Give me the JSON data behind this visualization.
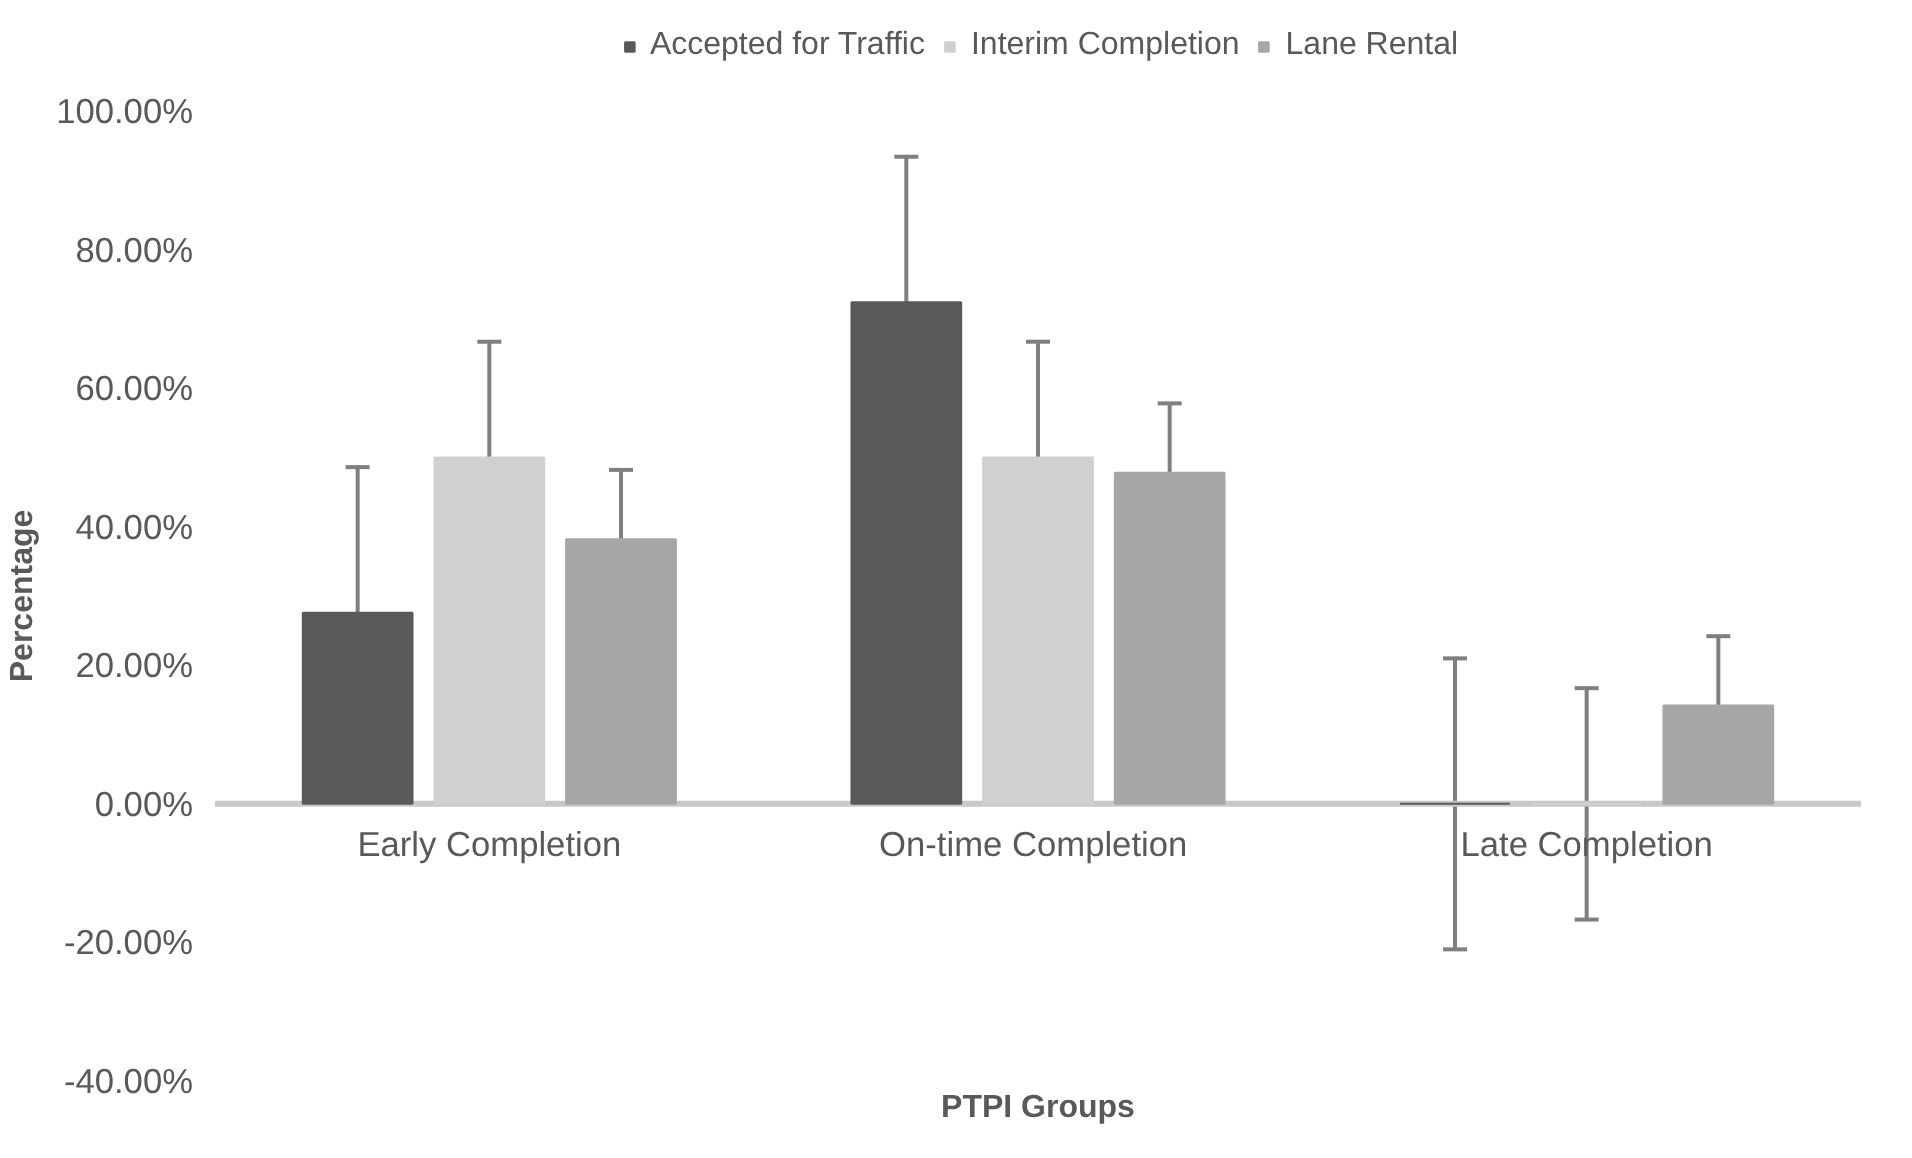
{
  "chart_data": {
    "type": "bar",
    "xlabel": "PTPI Groups",
    "ylabel": "Percentage",
    "categories": [
      "Early Completion",
      "On-time  Completion",
      "Late Completion"
    ],
    "series": [
      {
        "name": "Accepted for Traffic",
        "color": "#595959",
        "values": [
          27.6,
          72.4,
          0
        ],
        "errors": [
          21,
          21,
          21
        ]
      },
      {
        "name": "Interim Completion",
        "color": "#d0d0d0",
        "values": [
          50,
          50,
          0
        ],
        "errors": [
          16.7,
          16.7,
          16.7
        ]
      },
      {
        "name": "Lane Rental",
        "color": "#a6a6a6",
        "values": [
          38.2,
          47.8,
          14.2
        ],
        "errors": [
          10,
          10,
          10
        ]
      }
    ],
    "ylim": [
      -40,
      100
    ],
    "yticks": [
      {
        "value": -40,
        "label": "-40.00%"
      },
      {
        "value": -20,
        "label": "-20.00%"
      },
      {
        "value": 0,
        "label": "0.00%"
      },
      {
        "value": 20,
        "label": "20.00%"
      },
      {
        "value": 40,
        "label": "40.00%"
      },
      {
        "value": 60,
        "label": "60.00%"
      },
      {
        "value": 80,
        "label": "80.00%"
      },
      {
        "value": 100,
        "label": "100.00%"
      }
    ],
    "grid": false,
    "legend": "top"
  }
}
